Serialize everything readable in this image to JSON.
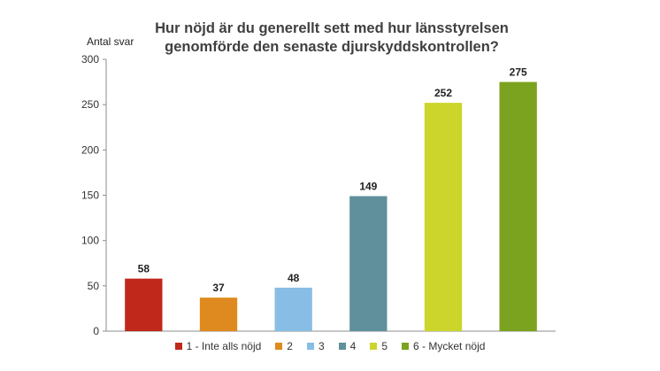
{
  "chart_data": {
    "type": "bar",
    "title": "Hur nöjd är du generellt sett med hur länsstyrelsen genomförde den senaste djurskyddskontrollen?",
    "ylabel": "Antal svar",
    "xlabel": "",
    "categories": [
      "1 - Inte alls nöjd",
      "2",
      "3",
      "4",
      "5",
      "6 - Mycket nöjd"
    ],
    "values": [
      58,
      37,
      48,
      149,
      252,
      275
    ],
    "colors": [
      "#c0281c",
      "#de8a1e",
      "#88bde6",
      "#5f909b",
      "#cbd52c",
      "#7ba31f"
    ],
    "ylim": [
      0,
      300
    ],
    "yticks": [
      0,
      50,
      100,
      150,
      200,
      250,
      300
    ],
    "grid": false,
    "legend_position": "bottom",
    "show_data_labels": true
  }
}
